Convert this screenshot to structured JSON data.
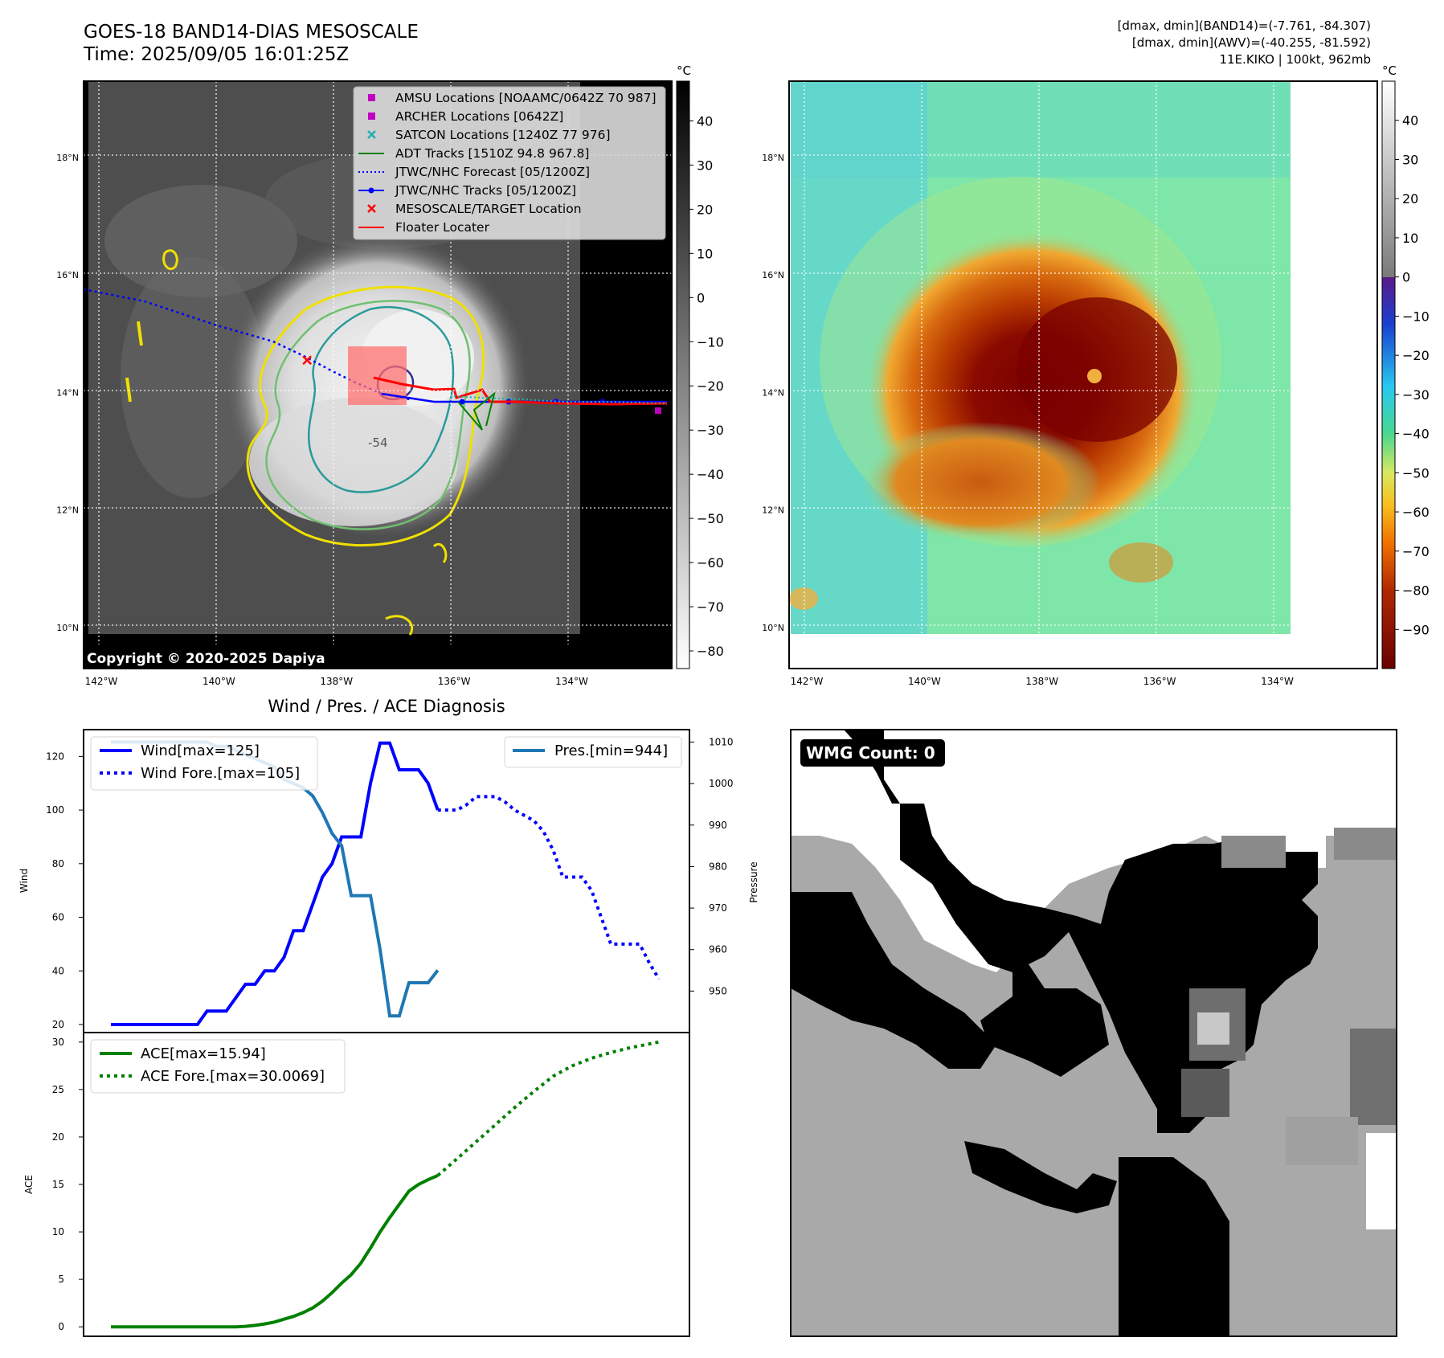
{
  "header": {
    "title": "GOES-18 BAND14-DIAS MESOSCALE",
    "time": "Time: 2025/09/05 16:01:25Z",
    "stats_band14": "[dmax, dmin](BAND14)=(-7.761, -84.307)",
    "stats_awv": "[dmax, dmin](AWV)=(-40.255, -81.592)",
    "storm_info": "11E.KIKO | 100kt, 962mb"
  },
  "map_axes": {
    "lat_labels": [
      "18°N",
      "16°N",
      "14°N",
      "12°N",
      "10°N"
    ],
    "lon_labels": [
      "142°W",
      "140°W",
      "138°W",
      "136°W",
      "134°W"
    ],
    "lat_values": [
      18,
      16,
      14,
      12,
      10
    ],
    "lon_values": [
      -142,
      -140,
      -138,
      -136,
      -134
    ],
    "lat_range": [
      9.3,
      19.3
    ],
    "lon_range": [
      -142.3,
      -132.3
    ]
  },
  "left_map": {
    "copyright": "Copyright © 2020-2025 Dapiya",
    "colorbar_unit": "°C",
    "colorbar_ticks": [
      "40",
      "30",
      "20",
      "10",
      "0",
      "−10",
      "−20",
      "−30",
      "−40",
      "−50",
      "−60",
      "−70",
      "−80"
    ],
    "colorbar_values": [
      40,
      30,
      20,
      10,
      0,
      -10,
      -20,
      -30,
      -40,
      -50,
      -60,
      -70,
      -80
    ],
    "colorbar_range": [
      -84,
      49
    ],
    "contour_label": "-54",
    "legend": [
      {
        "label": "AMSU Locations [NOAAMC/0642Z 70 987]",
        "marker": "square",
        "color": "#c000c0"
      },
      {
        "label": "ARCHER Locations [0642Z]",
        "marker": "square",
        "color": "#c000c0"
      },
      {
        "label": "SATCON Locations [1240Z 77 976]",
        "marker": "x",
        "color": "#20b0b0"
      },
      {
        "label": "ADT Tracks [1510Z 94.8 967.8]",
        "marker": "line",
        "color": "#008000"
      },
      {
        "label": "JTWC/NHC Forecast [05/1200Z]",
        "marker": "dotted",
        "color": "#0000ff"
      },
      {
        "label": "JTWC/NHC Tracks [05/1200Z]",
        "marker": "line-dot",
        "color": "#0000ff"
      },
      {
        "label": "MESOSCALE/TARGET Location",
        "marker": "x",
        "color": "#ff0000"
      },
      {
        "label": "Floater Locater",
        "marker": "line",
        "color": "#ff0000"
      }
    ],
    "target_location": {
      "lon": -138.5,
      "lat": 14.55
    }
  },
  "right_map": {
    "colorbar_unit": "°C",
    "colorbar_ticks": [
      "40",
      "30",
      "20",
      "10",
      "0",
      "−10",
      "−20",
      "−30",
      "−40",
      "−50",
      "−60",
      "−70",
      "−80",
      "−90"
    ],
    "colorbar_values": [
      40,
      30,
      20,
      10,
      0,
      -10,
      -20,
      -30,
      -40,
      -50,
      -60,
      -70,
      -80,
      -90
    ],
    "colorbar_range": [
      -100,
      50
    ]
  },
  "wmg": {
    "badge": "WMG Count: 0"
  },
  "chart_data": [
    {
      "type": "line",
      "title": "Wind / Pres. / ACE Diagnosis",
      "ylabel": "Wind",
      "ylabel_right": "Pressure",
      "ylim": [
        17,
        130
      ],
      "ylim_right": [
        940,
        1013
      ],
      "y_ticks": [
        20,
        40,
        60,
        80,
        100,
        120
      ],
      "y_ticks_right": [
        950,
        960,
        970,
        980,
        990,
        1000,
        1010
      ],
      "series": [
        {
          "name": "Wind[max=125]",
          "axis": "left",
          "style": "solid",
          "color": "#0000ff",
          "x": [
            0,
            1,
            2,
            3,
            4,
            5,
            6,
            7,
            8,
            9,
            10,
            11,
            12,
            13,
            14,
            15,
            16,
            17,
            18,
            19,
            20,
            21,
            22,
            23,
            24,
            25,
            26,
            27,
            28,
            29,
            30,
            31,
            32,
            33,
            34
          ],
          "values": [
            20,
            20,
            20,
            20,
            20,
            20,
            20,
            20,
            20,
            20,
            25,
            25,
            25,
            30,
            35,
            35,
            40,
            40,
            45,
            55,
            55,
            65,
            75,
            80,
            90,
            90,
            90,
            110,
            125,
            125,
            115,
            115,
            115,
            110,
            100
          ]
        },
        {
          "name": "Wind Fore.[max=105]",
          "axis": "left",
          "style": "dotted",
          "color": "#0000ff",
          "x": [
            34,
            35,
            36,
            37,
            38,
            39,
            40,
            41,
            42,
            43,
            44,
            45,
            46,
            47,
            48,
            49,
            50,
            51,
            52,
            53,
            54,
            55,
            56,
            57
          ],
          "values": [
            100,
            100,
            100,
            102,
            105,
            105,
            105,
            103,
            100,
            98,
            96,
            92,
            85,
            75,
            75,
            75,
            70,
            60,
            50,
            50,
            50,
            50,
            43,
            37
          ]
        },
        {
          "name": "Pres.[min=944]",
          "axis": "right",
          "style": "solid",
          "color": "#1f77b4",
          "x": [
            0,
            1,
            2,
            3,
            4,
            5,
            6,
            7,
            8,
            9,
            10,
            11,
            12,
            13,
            14,
            15,
            16,
            17,
            18,
            19,
            20,
            21,
            22,
            23,
            24,
            25,
            26,
            27,
            28,
            29,
            30,
            31,
            32,
            33,
            34
          ],
          "values": [
            1010,
            1010,
            1010,
            1010,
            1010,
            1010,
            1010,
            1010,
            1010,
            1010,
            1010,
            1009,
            1009,
            1008,
            1007,
            1006,
            1005,
            1004,
            1001,
            1000,
            999,
            997,
            993,
            988,
            985,
            973,
            973,
            973,
            960,
            944,
            944,
            952,
            952,
            952,
            955
          ]
        }
      ]
    },
    {
      "type": "line",
      "ylabel": "ACE",
      "ylim": [
        -1,
        31
      ],
      "y_ticks": [
        0,
        5,
        10,
        15,
        20,
        25,
        30
      ],
      "series": [
        {
          "name": "ACE[max=15.94]",
          "style": "solid",
          "color": "#008000",
          "x": [
            0,
            1,
            2,
            3,
            4,
            5,
            6,
            7,
            8,
            9,
            10,
            11,
            12,
            13,
            14,
            15,
            16,
            17,
            18,
            19,
            20,
            21,
            22,
            23,
            24,
            25,
            26,
            27,
            28,
            29,
            30,
            31,
            32,
            33,
            34
          ],
          "values": [
            0,
            0,
            0,
            0,
            0,
            0,
            0,
            0,
            0,
            0,
            0,
            0,
            0,
            0,
            0.05,
            0.15,
            0.3,
            0.5,
            0.8,
            1.1,
            1.5,
            2.0,
            2.7,
            3.6,
            4.6,
            5.5,
            6.7,
            8.3,
            10.0,
            11.5,
            12.9,
            14.3,
            15.0,
            15.5,
            15.94
          ]
        },
        {
          "name": "ACE Fore.[max=30.0069]",
          "style": "dotted",
          "color": "#008000",
          "x": [
            34,
            36,
            38,
            40,
            42,
            44,
            46,
            48,
            50,
            52,
            54,
            56,
            57
          ],
          "values": [
            15.94,
            17.7,
            19.5,
            21.3,
            23.1,
            24.8,
            26.4,
            27.5,
            28.3,
            28.9,
            29.4,
            29.8,
            30.0069
          ]
        }
      ]
    }
  ]
}
